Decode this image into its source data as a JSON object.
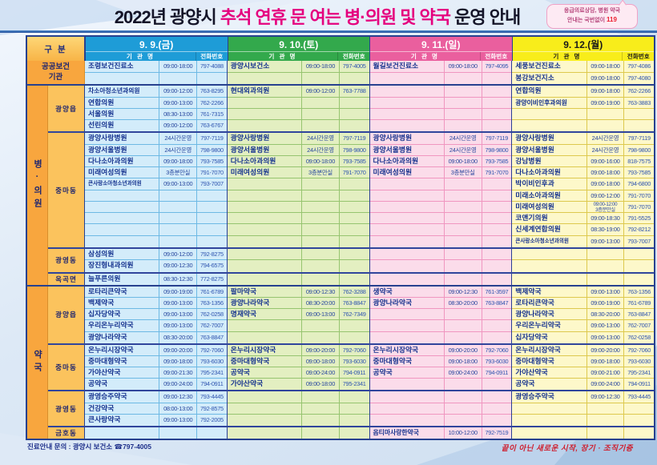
{
  "title": {
    "part1": "2022년 광양시 ",
    "highlight": "추석 연휴 문 여는 병·의원 및 약국",
    "part2": " 운영 안내"
  },
  "badge": {
    "line1": "응급의료상담, 병원 약국",
    "line2_pre": "안내는 국번없이 ",
    "line2_num": "119"
  },
  "table": {
    "gubun_label": "구 분",
    "name_header": "기 관 명",
    "phone_header": "전화번호",
    "days": [
      {
        "label": "9. 9.(금)",
        "header_bg": "#1e9cd7",
        "header_text": "#ffffff",
        "body_bg": "#d3ecfa",
        "grid": "#6db9e4"
      },
      {
        "label": "9. 10.(토)",
        "header_bg": "#33a94c",
        "header_text": "#ffffff",
        "body_bg": "#e3efc1",
        "grid": "#96c46f"
      },
      {
        "label": "9. 11.(일)",
        "header_bg": "#ea5f9e",
        "header_text": "#ffffff",
        "body_bg": "#fbdcea",
        "grid": "#f096c0"
      },
      {
        "label": "9. 12.(월)",
        "header_bg": "#f8ed1b",
        "header_text": "#1a1a1a",
        "body_bg": "#fdf8ca",
        "grid": "#ddc94e"
      }
    ],
    "sections": [
      {
        "label": "공공보건\n기관",
        "merged": true,
        "groups": [
          {
            "label": null,
            "rows": [
              [
                [
                  "조령보건진료소",
                  "09:00-18:00",
                  "797-4088"
                ],
                [
                  "광양시보건소",
                  "09:00-18:00",
                  "797-4005"
                ],
                [
                  "월길보건진료소",
                  "09:00-18:00",
                  "797-4095"
                ],
                [
                  "세풍보건진료소",
                  "09:00-18:00",
                  "797-4086"
                ]
              ],
              [
                null,
                null,
                null,
                [
                  "봉강보건지소",
                  "09:00-18:00",
                  "797-4080"
                ]
              ]
            ]
          }
        ]
      },
      {
        "label": "병·의원",
        "merged": false,
        "groups": [
          {
            "label": "광양읍",
            "rows": [
              [
                [
                  "차소아청소년과의원",
                  "09:00-12:00",
                  "763-8295"
                ],
                [
                  "현대외과의원",
                  "09:00-12:00",
                  "763-7788"
                ],
                null,
                [
                  "연합의원",
                  "09:00-18:00",
                  "762-2266"
                ]
              ],
              [
                [
                  "연합의원",
                  "09:00-13:00",
                  "762-2266"
                ],
                null,
                null,
                [
                  "광양이비인후과의원",
                  "09:00-19:00",
                  "763-3883"
                ]
              ],
              [
                [
                  "서울의원",
                  "08:30-13:00",
                  "761-7315"
                ],
                null,
                null,
                null
              ],
              [
                [
                  "선린의원",
                  "09:00-12:00",
                  "763-6767"
                ],
                null,
                null,
                null
              ]
            ]
          },
          {
            "label": "중마동",
            "rows": [
              [
                [
                  "광양사랑병원",
                  "24시간운영",
                  "797-7119"
                ],
                [
                  "광양사랑병원",
                  "24시간운영",
                  "797-7119"
                ],
                [
                  "광양사랑병원",
                  "24시간운영",
                  "797-7119"
                ],
                [
                  "광양사랑병원",
                  "24시간운영",
                  "797-7119"
                ]
              ],
              [
                [
                  "광양서울병원",
                  "24시간운영",
                  "798-9800"
                ],
                [
                  "광양서울병원",
                  "24시간운영",
                  "798-9800"
                ],
                [
                  "광양서울병원",
                  "24시간운영",
                  "798-9800"
                ],
                [
                  "광양서울병원",
                  "24시간운영",
                  "798-9800"
                ]
              ],
              [
                [
                  "다나소아과의원",
                  "09:00-18:00",
                  "793-7585"
                ],
                [
                  "다나소아과의원",
                  "09:00-18:00",
                  "793-7585"
                ],
                [
                  "다나소아과의원",
                  "09:00-18:00",
                  "793-7585"
                ],
                [
                  "강남병원",
                  "09:00-16:00",
                  "818-7575"
                ]
              ],
              [
                [
                  "미래여성의원",
                  "3층분만실",
                  "791-7070"
                ],
                [
                  "미래여성의원",
                  "3층분만실",
                  "791-7070"
                ],
                [
                  "미래여성의원",
                  "3층분만실",
                  "791-7070"
                ],
                [
                  "다나소아과의원",
                  "09:00-18:00",
                  "793-7585"
                ]
              ],
              [
                [
                  "큰사랑소아청소년과의원",
                  "09:00-13:00",
                  "793-7007"
                ],
                null,
                null,
                [
                  "박이비인후과",
                  "09:00-18:00",
                  "794-6800"
                ]
              ],
              [
                null,
                null,
                null,
                [
                  "미래소아과의원",
                  "09:00-12:00",
                  "791-7070"
                ]
              ],
              [
                null,
                null,
                null,
                [
                  "미래여성의원",
                  "09:00-12:00\n3층분만실",
                  "791-7070"
                ]
              ],
              [
                null,
                null,
                null,
                [
                  "코앤기의원",
                  "09:00-18:30",
                  "791-5525"
                ]
              ],
              [
                null,
                null,
                null,
                [
                  "신세계연합의원",
                  "08:30-19:00",
                  "792-8212"
                ]
              ],
              [
                null,
                null,
                null,
                [
                  "큰사랑소아청소년과의원",
                  "09:00-13:00",
                  "793-7007"
                ]
              ]
            ]
          },
          {
            "label": "광영동",
            "rows": [
              [
                [
                  "삼성의원",
                  "09:00-12:00",
                  "792-8275"
                ],
                null,
                null,
                null
              ],
              [
                [
                  "장진형내과의원",
                  "09:00-12:30",
                  "794-6575"
                ],
                null,
                null,
                null
              ]
            ]
          },
          {
            "label": "옥곡면",
            "rows": [
              [
                [
                  "늘푸른의원",
                  "08:30-12:30",
                  "772-8275"
                ],
                null,
                null,
                null
              ]
            ]
          }
        ]
      },
      {
        "label": "약국",
        "merged": false,
        "groups": [
          {
            "label": "광양읍",
            "rows": [
              [
                [
                  "로타리큰약국",
                  "09:00-19:00",
                  "761-6789"
                ],
                [
                  "팔마약국",
                  "09:00-12:30",
                  "762-3288"
                ],
                [
                  "생약국",
                  "09:00-12:30",
                  "761-3597"
                ],
                [
                  "백제약국",
                  "09:00-13:00",
                  "763-1356"
                ]
              ],
              [
                [
                  "백제약국",
                  "09:00-13:00",
                  "763-1356"
                ],
                [
                  "광양나라약국",
                  "08:30-20:00",
                  "763-8847"
                ],
                [
                  "광양나라약국",
                  "08:30-20:00",
                  "763-8847"
                ],
                [
                  "로타리큰약국",
                  "09:00-19:00",
                  "761-6789"
                ]
              ],
              [
                [
                  "십자당약국",
                  "09:00-13:00",
                  "762-0258"
                ],
                [
                  "명재약국",
                  "09:00-13:00",
                  "762-7349"
                ],
                null,
                [
                  "광양나라약국",
                  "08:30-20:00",
                  "763-8847"
                ]
              ],
              [
                [
                  "우리온누리약국",
                  "09:00-13:00",
                  "762-7007"
                ],
                null,
                null,
                [
                  "우리온누리약국",
                  "09:00-13:00",
                  "762-7007"
                ]
              ],
              [
                [
                  "광양나라약국",
                  "08:30-20:00",
                  "763-8847"
                ],
                null,
                null,
                [
                  "십자당약국",
                  "09:00-13:00",
                  "762-0258"
                ]
              ]
            ]
          },
          {
            "label": "중마동",
            "rows": [
              [
                [
                  "온누리시장약국",
                  "09:00-20:00",
                  "792-7060"
                ],
                [
                  "온누리시장약국",
                  "09:00-20:00",
                  "792-7060"
                ],
                [
                  "온누리시장약국",
                  "09:00-20:00",
                  "792-7060"
                ],
                [
                  "온누리시장약국",
                  "09:00-20:00",
                  "792-7060"
                ]
              ],
              [
                [
                  "중마대형약국",
                  "09:00-18:00",
                  "793-6030"
                ],
                [
                  "중마대형약국",
                  "09:00-18:00",
                  "793-6030"
                ],
                [
                  "중마대형약국",
                  "09:00-18:00",
                  "793-6030"
                ],
                [
                  "중마대형약국",
                  "09:00-18:00",
                  "793-6030"
                ]
              ],
              [
                [
                  "가야산약국",
                  "09:00-21:30",
                  "795-2341"
                ],
                [
                  "공약국",
                  "09:00-24:00",
                  "794-0911"
                ],
                [
                  "공약국",
                  "09:00-24:00",
                  "794-0911"
                ],
                [
                  "가야산약국",
                  "09:00-21:00",
                  "795-2341"
                ]
              ],
              [
                [
                  "공약국",
                  "09:00-24:00",
                  "794-0911"
                ],
                [
                  "가야산약국",
                  "09:00-18:00",
                  "795-2341"
                ],
                null,
                [
                  "공약국",
                  "09:00-24:00",
                  "794-0911"
                ]
              ]
            ]
          },
          {
            "label": "광영동",
            "rows": [
              [
                [
                  "광영승주약국",
                  "09:00-12:30",
                  "793-4445"
                ],
                null,
                null,
                [
                  "광영승주약국",
                  "09:00-12:30",
                  "793-4445"
                ]
              ],
              [
                [
                  "건강약국",
                  "08:00-13:00",
                  "792-8575"
                ],
                null,
                null,
                null
              ],
              [
                [
                  "큰사랑약국",
                  "09:00-13:00",
                  "792-2005"
                ],
                null,
                null,
                null
              ]
            ]
          },
          {
            "label": "금호동",
            "rows": [
              [
                null,
                null,
                [
                  "옵티마사랑한약국",
                  "10:00-12:00",
                  "792-7519"
                ],
                null
              ]
            ]
          }
        ]
      }
    ]
  },
  "footer": {
    "left": "진료안내 문의 : 광양시 보건소 ☎797-4005",
    "right": "끝이 아닌 새로운 시작, 장기 · 조직기증"
  }
}
